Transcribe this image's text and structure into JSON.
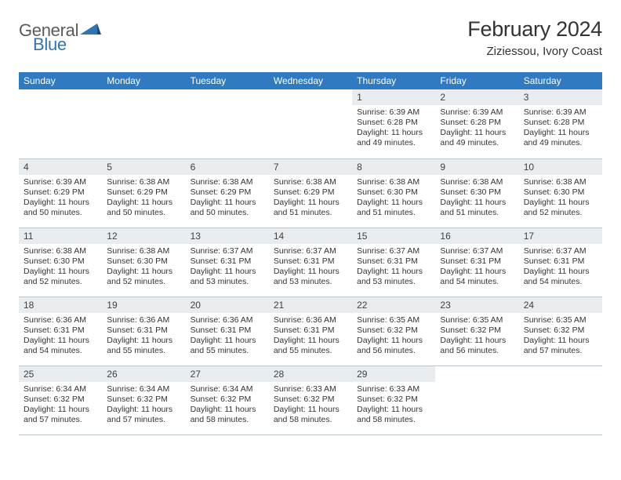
{
  "brand": {
    "word1": "General",
    "word2": "Blue",
    "text_color_general": "#5a5a5a",
    "text_color_blue": "#2f75b5",
    "shape_color": "#2f75b5"
  },
  "header": {
    "title": "February 2024",
    "subtitle": "Ziziessou, Ivory Coast"
  },
  "colors": {
    "dayhead_bg": "#2f7ac0",
    "dayhead_fg": "#ffffff",
    "daynum_bg": "#e8ecef",
    "border": "#b9c4cd",
    "text": "#333333"
  },
  "day_names": [
    "Sunday",
    "Monday",
    "Tuesday",
    "Wednesday",
    "Thursday",
    "Friday",
    "Saturday"
  ],
  "weeks": [
    [
      {
        "blank": true
      },
      {
        "blank": true
      },
      {
        "blank": true
      },
      {
        "blank": true
      },
      {
        "day": "1",
        "sunrise": "6:39 AM",
        "sunset": "6:28 PM",
        "daylight": "11 hours and 49 minutes."
      },
      {
        "day": "2",
        "sunrise": "6:39 AM",
        "sunset": "6:28 PM",
        "daylight": "11 hours and 49 minutes."
      },
      {
        "day": "3",
        "sunrise": "6:39 AM",
        "sunset": "6:28 PM",
        "daylight": "11 hours and 49 minutes."
      }
    ],
    [
      {
        "day": "4",
        "sunrise": "6:39 AM",
        "sunset": "6:29 PM",
        "daylight": "11 hours and 50 minutes."
      },
      {
        "day": "5",
        "sunrise": "6:38 AM",
        "sunset": "6:29 PM",
        "daylight": "11 hours and 50 minutes."
      },
      {
        "day": "6",
        "sunrise": "6:38 AM",
        "sunset": "6:29 PM",
        "daylight": "11 hours and 50 minutes."
      },
      {
        "day": "7",
        "sunrise": "6:38 AM",
        "sunset": "6:29 PM",
        "daylight": "11 hours and 51 minutes."
      },
      {
        "day": "8",
        "sunrise": "6:38 AM",
        "sunset": "6:30 PM",
        "daylight": "11 hours and 51 minutes."
      },
      {
        "day": "9",
        "sunrise": "6:38 AM",
        "sunset": "6:30 PM",
        "daylight": "11 hours and 51 minutes."
      },
      {
        "day": "10",
        "sunrise": "6:38 AM",
        "sunset": "6:30 PM",
        "daylight": "11 hours and 52 minutes."
      }
    ],
    [
      {
        "day": "11",
        "sunrise": "6:38 AM",
        "sunset": "6:30 PM",
        "daylight": "11 hours and 52 minutes."
      },
      {
        "day": "12",
        "sunrise": "6:38 AM",
        "sunset": "6:30 PM",
        "daylight": "11 hours and 52 minutes."
      },
      {
        "day": "13",
        "sunrise": "6:37 AM",
        "sunset": "6:31 PM",
        "daylight": "11 hours and 53 minutes."
      },
      {
        "day": "14",
        "sunrise": "6:37 AM",
        "sunset": "6:31 PM",
        "daylight": "11 hours and 53 minutes."
      },
      {
        "day": "15",
        "sunrise": "6:37 AM",
        "sunset": "6:31 PM",
        "daylight": "11 hours and 53 minutes."
      },
      {
        "day": "16",
        "sunrise": "6:37 AM",
        "sunset": "6:31 PM",
        "daylight": "11 hours and 54 minutes."
      },
      {
        "day": "17",
        "sunrise": "6:37 AM",
        "sunset": "6:31 PM",
        "daylight": "11 hours and 54 minutes."
      }
    ],
    [
      {
        "day": "18",
        "sunrise": "6:36 AM",
        "sunset": "6:31 PM",
        "daylight": "11 hours and 54 minutes."
      },
      {
        "day": "19",
        "sunrise": "6:36 AM",
        "sunset": "6:31 PM",
        "daylight": "11 hours and 55 minutes."
      },
      {
        "day": "20",
        "sunrise": "6:36 AM",
        "sunset": "6:31 PM",
        "daylight": "11 hours and 55 minutes."
      },
      {
        "day": "21",
        "sunrise": "6:36 AM",
        "sunset": "6:31 PM",
        "daylight": "11 hours and 55 minutes."
      },
      {
        "day": "22",
        "sunrise": "6:35 AM",
        "sunset": "6:32 PM",
        "daylight": "11 hours and 56 minutes."
      },
      {
        "day": "23",
        "sunrise": "6:35 AM",
        "sunset": "6:32 PM",
        "daylight": "11 hours and 56 minutes."
      },
      {
        "day": "24",
        "sunrise": "6:35 AM",
        "sunset": "6:32 PM",
        "daylight": "11 hours and 57 minutes."
      }
    ],
    [
      {
        "day": "25",
        "sunrise": "6:34 AM",
        "sunset": "6:32 PM",
        "daylight": "11 hours and 57 minutes."
      },
      {
        "day": "26",
        "sunrise": "6:34 AM",
        "sunset": "6:32 PM",
        "daylight": "11 hours and 57 minutes."
      },
      {
        "day": "27",
        "sunrise": "6:34 AM",
        "sunset": "6:32 PM",
        "daylight": "11 hours and 58 minutes."
      },
      {
        "day": "28",
        "sunrise": "6:33 AM",
        "sunset": "6:32 PM",
        "daylight": "11 hours and 58 minutes."
      },
      {
        "day": "29",
        "sunrise": "6:33 AM",
        "sunset": "6:32 PM",
        "daylight": "11 hours and 58 minutes."
      },
      {
        "blank": true
      },
      {
        "blank": true
      }
    ]
  ],
  "labels": {
    "sunrise": "Sunrise:",
    "sunset": "Sunset:",
    "daylight": "Daylight:"
  }
}
